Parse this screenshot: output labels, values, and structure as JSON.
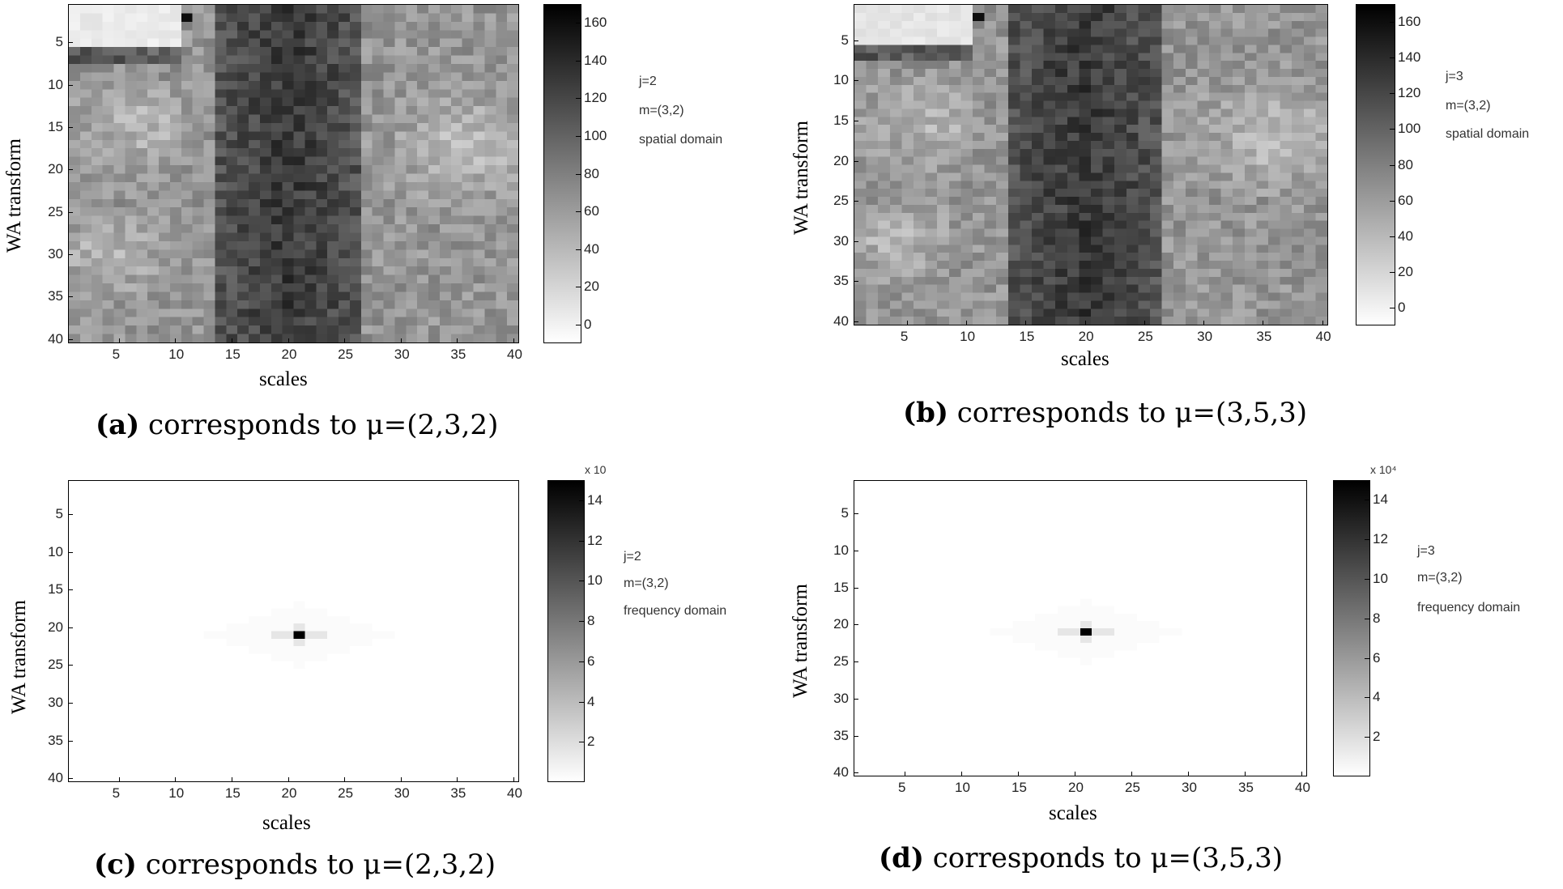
{
  "chart_data": [
    {
      "id": "a",
      "type": "heatmap",
      "domain": "spatial",
      "caption_letter": "(a)",
      "caption_text": " corresponds to μ=(2,3,2)",
      "xlabel": "scales",
      "ylabel": "WA transform",
      "x_ticks": [
        "5",
        "10",
        "15",
        "20",
        "25",
        "30",
        "35",
        "40"
      ],
      "y_ticks": [
        "5",
        "10",
        "15",
        "20",
        "25",
        "30",
        "35",
        "40"
      ],
      "xlim": [
        0.5,
        40.5
      ],
      "ylim": [
        0.5,
        40.5
      ],
      "colorbar_ticks": [
        "0",
        "20",
        "40",
        "60",
        "80",
        "100",
        "120",
        "140",
        "160"
      ],
      "colorbar_range": [
        -10,
        170
      ],
      "colorbar_multiplier": "",
      "notes": [
        "j=2",
        "m=(3,2)",
        "spatial domain"
      ],
      "colormap": "gray-reversed",
      "grid": false
    },
    {
      "id": "b",
      "type": "heatmap",
      "domain": "spatial",
      "caption_letter": "(b)",
      "caption_text": " corresponds to μ=(3,5,3)",
      "xlabel": "scales",
      "ylabel": "WA transform",
      "x_ticks": [
        "5",
        "10",
        "15",
        "20",
        "25",
        "30",
        "35",
        "40"
      ],
      "y_ticks": [
        "5",
        "10",
        "15",
        "20",
        "25",
        "30",
        "35",
        "40"
      ],
      "xlim": [
        0.5,
        40.5
      ],
      "ylim": [
        0.5,
        40.5
      ],
      "colorbar_ticks": [
        "0",
        "20",
        "40",
        "60",
        "80",
        "100",
        "120",
        "140",
        "160"
      ],
      "colorbar_range": [
        -10,
        170
      ],
      "colorbar_multiplier": "",
      "notes": [
        "j=3",
        "m=(3,2)",
        "spatial domain"
      ],
      "colormap": "gray-reversed",
      "grid": false
    },
    {
      "id": "c",
      "type": "heatmap",
      "domain": "frequency",
      "caption_letter": "(c)",
      "caption_text": " corresponds to μ=(2,3,2)",
      "xlabel": "scales",
      "ylabel": "WA transform",
      "x_ticks": [
        "5",
        "10",
        "15",
        "20",
        "25",
        "30",
        "35",
        "40"
      ],
      "y_ticks": [
        "5",
        "10",
        "15",
        "20",
        "25",
        "30",
        "35",
        "40"
      ],
      "xlim": [
        0.5,
        40.5
      ],
      "ylim": [
        0.5,
        40.5
      ],
      "colorbar_ticks": [
        "2",
        "4",
        "6",
        "8",
        "10",
        "12",
        "14"
      ],
      "colorbar_range": [
        0,
        15
      ],
      "colorbar_multiplier": "x 10",
      "notes": [
        "j=2",
        "m=(3,2)",
        "frequency domain"
      ],
      "peak": {
        "x": 21,
        "y": 21,
        "value": 15
      },
      "colormap": "gray-reversed",
      "grid": false
    },
    {
      "id": "d",
      "type": "heatmap",
      "domain": "frequency",
      "caption_letter": "(d)",
      "caption_text": " corresponds to μ=(3,5,3)",
      "xlabel": "scales",
      "ylabel": "WA transform",
      "x_ticks": [
        "5",
        "10",
        "15",
        "20",
        "25",
        "30",
        "35",
        "40"
      ],
      "y_ticks": [
        "5",
        "10",
        "15",
        "20",
        "25",
        "30",
        "35",
        "40"
      ],
      "xlim": [
        0.5,
        40.5
      ],
      "ylim": [
        0.5,
        40.5
      ],
      "colorbar_ticks": [
        "2",
        "4",
        "6",
        "8",
        "10",
        "12",
        "14"
      ],
      "colorbar_range": [
        0,
        15
      ],
      "colorbar_multiplier": "x 10⁴",
      "notes": [
        "j=3",
        "m=(3,2)",
        "frequency domain"
      ],
      "peak": {
        "x": 21,
        "y": 21,
        "value": 15
      },
      "colormap": "gray-reversed",
      "grid": false
    }
  ]
}
